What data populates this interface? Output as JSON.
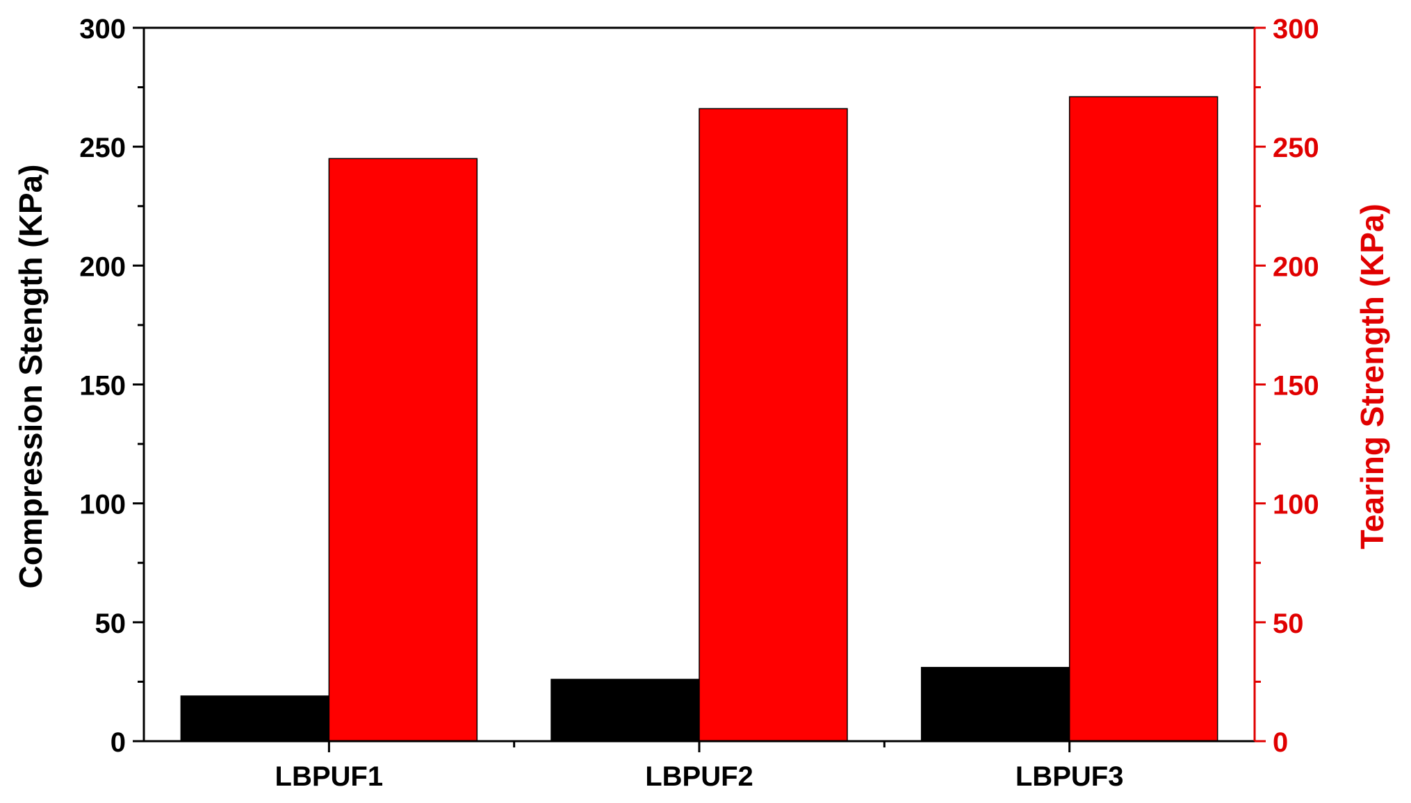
{
  "chart_data": {
    "type": "bar",
    "categories": [
      "LBPUF1",
      "LBPUF2",
      "LBPUF3"
    ],
    "series": [
      {
        "axis": "left",
        "color": "#000000",
        "values": [
          19,
          26,
          31
        ]
      },
      {
        "axis": "right",
        "color": "#ff0000",
        "values": [
          245,
          266,
          271
        ]
      }
    ],
    "xlabel": "",
    "ylabel": "Compression Stength (KPa)",
    "ylabel_right": "Tearing Strength (KPa)",
    "ylim": [
      0,
      300
    ],
    "ylim_right": [
      0,
      300
    ],
    "yticks": [
      0,
      50,
      100,
      150,
      200,
      250,
      300
    ],
    "yticks_right": [
      0,
      50,
      100,
      150,
      200,
      250,
      300
    ],
    "right_axis_color": "#e00000",
    "grid": false,
    "legend": "none"
  }
}
